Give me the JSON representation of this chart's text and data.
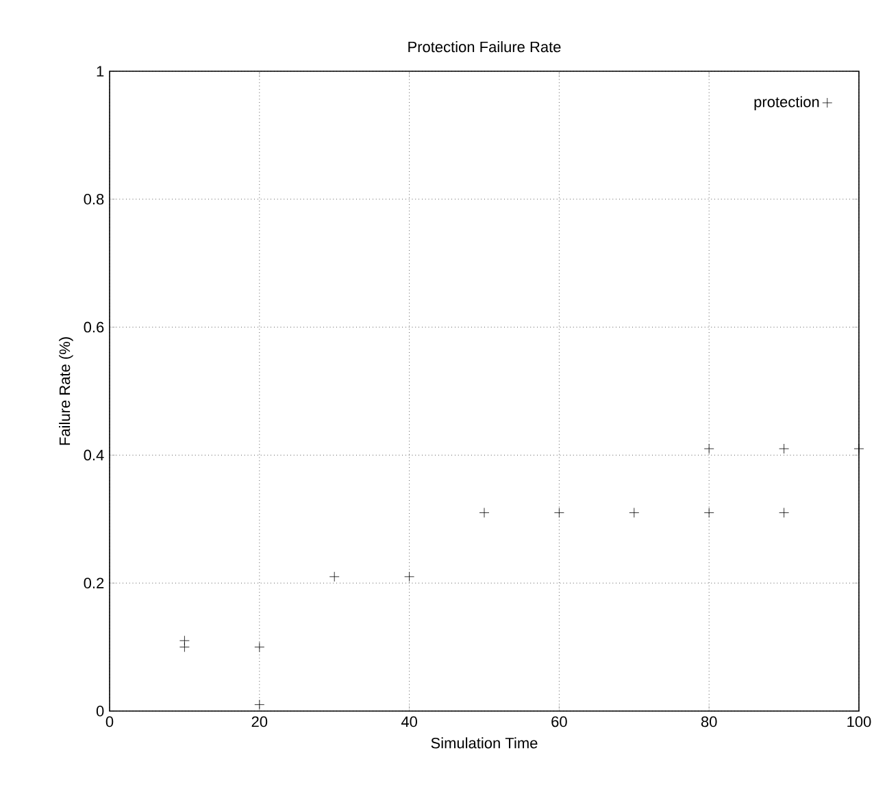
{
  "chart_data": {
    "type": "scatter",
    "title": "Protection Failure Rate",
    "xlabel": "Simulation Time",
    "ylabel": "Failure Rate (%)",
    "xlim": [
      0,
      100
    ],
    "ylim": [
      0,
      1
    ],
    "xticks": [
      0,
      20,
      40,
      60,
      80,
      100
    ],
    "yticks": [
      0,
      0.2,
      0.4,
      0.6,
      0.8,
      1
    ],
    "grid": true,
    "legend": "top right",
    "marker": "cross",
    "series": [
      {
        "name": "protection",
        "color": "#000000",
        "x": [
          10,
          10,
          20,
          20,
          30,
          40,
          50,
          60,
          70,
          80,
          80,
          90,
          90,
          100
        ],
        "values": [
          0.11,
          0.1,
          0.1,
          0.01,
          0.21,
          0.21,
          0.31,
          0.31,
          0.31,
          0.31,
          0.41,
          0.41,
          0.31,
          0.41
        ]
      }
    ]
  }
}
